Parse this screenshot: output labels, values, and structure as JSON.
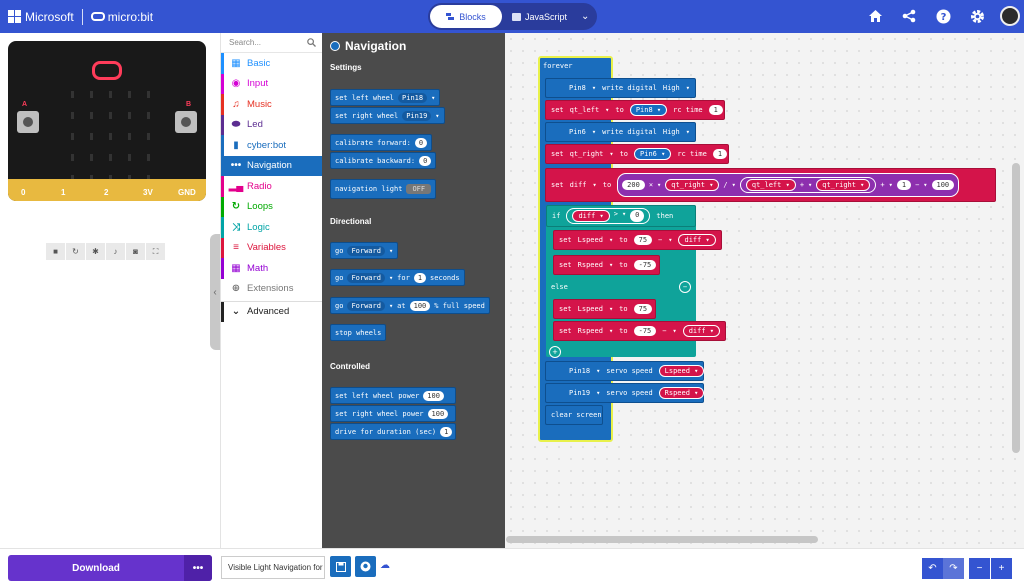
{
  "header": {
    "brand": "Microsoft",
    "product": "micro:bit",
    "tabs": [
      {
        "label": "Blocks",
        "active": true
      },
      {
        "label": "JavaScript",
        "active": false
      }
    ],
    "icons": [
      "home-icon",
      "share-icon",
      "help-icon",
      "settings-icon",
      "avatar"
    ]
  },
  "simulator": {
    "pins": [
      "0",
      "1",
      "2",
      "3V",
      "GND"
    ],
    "button_a": "A",
    "button_b": "B",
    "tools": [
      "stop-icon",
      "restart-icon",
      "debug-icon",
      "sound-icon",
      "screenshot-icon",
      "fullscreen-icon"
    ]
  },
  "toolbox": {
    "search_placeholder": "Search...",
    "categories": [
      {
        "label": "Basic",
        "color": "#1e90ff"
      },
      {
        "label": "Input",
        "color": "#d400d4"
      },
      {
        "label": "Music",
        "color": "#e63022"
      },
      {
        "label": "Led",
        "color": "#5c2d91"
      },
      {
        "label": "cyber:bot",
        "color": "#1a6dbd"
      },
      {
        "label": "Navigation",
        "color": "#1a6dbd",
        "active": true
      },
      {
        "label": "Radio",
        "color": "#e3008c"
      },
      {
        "label": "Loops",
        "color": "#00aa00"
      },
      {
        "label": "Logic",
        "color": "#00a4a6"
      },
      {
        "label": "Variables",
        "color": "#dc143c"
      },
      {
        "label": "Math",
        "color": "#9400d3"
      },
      {
        "label": "Extensions",
        "color": "#777777"
      }
    ],
    "advanced": "Advanced"
  },
  "flyout": {
    "title": "Navigation",
    "settings_header": "Settings",
    "settings": [
      {
        "text": "set left wheel",
        "dd": "Pin18"
      },
      {
        "text": "set right wheel",
        "dd": "Pin19"
      },
      {
        "text": "calibrate forward:",
        "num": "0"
      },
      {
        "text": "calibrate backward:",
        "num": "0"
      },
      {
        "text": "navigation light",
        "toggle": "OFF"
      }
    ],
    "directional_header": "Directional",
    "directional": [
      {
        "text": "go",
        "dd": "Forward"
      },
      {
        "text": "go",
        "dd": "Forward",
        "for": "for",
        "num": "1",
        "unit": "seconds"
      },
      {
        "text": "go",
        "dd": "Forward",
        "at": "at",
        "num": "100",
        "unit": "% full speed"
      },
      {
        "text": "stop wheels"
      }
    ],
    "controlled_header": "Controlled",
    "controlled": [
      {
        "text": "set left wheel power",
        "num": "100"
      },
      {
        "text": "set right wheel power",
        "num": "100"
      },
      {
        "text": "drive for duration (sec)",
        "num": "1"
      }
    ]
  },
  "program": {
    "forever": "forever",
    "pin8_write": {
      "pin": "Pin8",
      "action": "write digital",
      "value": "High"
    },
    "set_qt_left": {
      "set": "set",
      "var": "qt_left",
      "to": "to",
      "pin": "Pin8",
      "fn": "rc time",
      "num": "1"
    },
    "pin6_write": {
      "pin": "Pin6",
      "action": "write digital",
      "value": "High"
    },
    "set_qt_right": {
      "set": "set",
      "var": "qt_right",
      "to": "to",
      "pin": "Pin6",
      "fn": "rc time",
      "num": "1"
    },
    "set_diff": {
      "set": "set",
      "var": "diff",
      "to": "to",
      "n200": "200",
      "times": "×",
      "qt_right": "qt_right",
      "div": "/",
      "qt_left": "qt_left",
      "plus": "+",
      "qt_right2": "qt_right",
      "plus2": "+",
      "one": "1",
      "minus": "−",
      "n100": "100"
    },
    "if_cond": {
      "if": "if",
      "var": "diff",
      "op": ">",
      "num": "0",
      "then": "then"
    },
    "if_set_l": {
      "set": "set",
      "var": "Lspeed",
      "to": "to",
      "num": "75",
      "minus": "−",
      "var2": "diff"
    },
    "if_set_r": {
      "set": "set",
      "var": "Rspeed",
      "to": "to",
      "num": "-75"
    },
    "else": "else",
    "else_set_l": {
      "set": "set",
      "var": "Lspeed",
      "to": "to",
      "num": "75"
    },
    "else_set_r": {
      "set": "set",
      "var": "Rspeed",
      "to": "to",
      "num": "-75",
      "minus": "−",
      "var2": "diff"
    },
    "servo18": {
      "pin": "Pin18",
      "fn": "servo speed",
      "var": "Lspeed"
    },
    "servo19": {
      "pin": "Pin19",
      "fn": "servo speed",
      "var": "Rspeed"
    },
    "clear": "clear screen"
  },
  "footer": {
    "download": "Download",
    "project_name": "Visible Light Navigation for"
  }
}
